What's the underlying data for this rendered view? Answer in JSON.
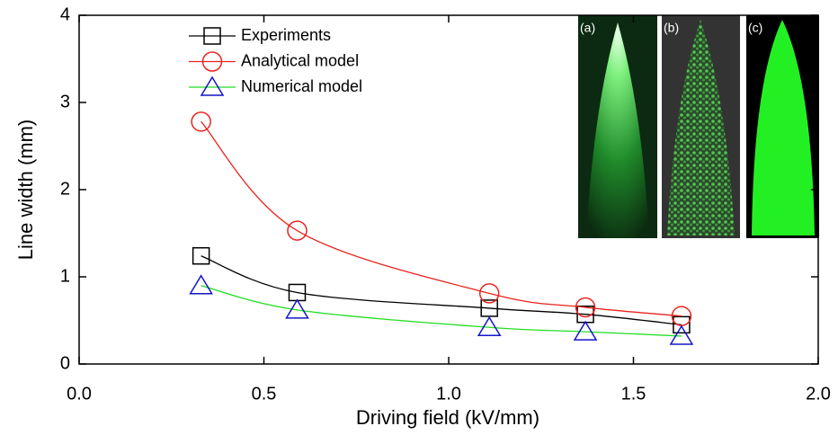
{
  "chart_data": {
    "type": "line",
    "xlabel": "Driving field (kV/mm)",
    "ylabel": "Line width (mm)",
    "x": [
      0.33,
      0.59,
      1.11,
      1.37,
      1.63
    ],
    "series": [
      {
        "name": "Experiments",
        "color": "#000000",
        "marker": "square",
        "values": [
          1.24,
          0.82,
          0.64,
          0.57,
          0.45
        ]
      },
      {
        "name": "Analytical model",
        "color": "#e8231f",
        "marker": "circle",
        "values": [
          2.78,
          1.53,
          0.81,
          0.65,
          0.55
        ]
      },
      {
        "name": "Numerical model",
        "color": "#1515c8",
        "line_color": "#22dd22",
        "marker": "triangle",
        "values": [
          0.9,
          0.62,
          0.42,
          0.37,
          0.32
        ]
      }
    ],
    "xlim": [
      0,
      2
    ],
    "ylim": [
      0,
      4
    ],
    "xticks": [
      {
        "value": 0,
        "label": "0.0"
      },
      {
        "value": 0.5,
        "label": "0.5"
      },
      {
        "value": 1,
        "label": "1.0"
      },
      {
        "value": 1.5,
        "label": "1.5"
      },
      {
        "value": 2,
        "label": "2.0"
      }
    ],
    "yticks": [
      0,
      1,
      2,
      3,
      4
    ],
    "inset_labels": [
      "(a)",
      "(b)",
      "(c)"
    ]
  }
}
